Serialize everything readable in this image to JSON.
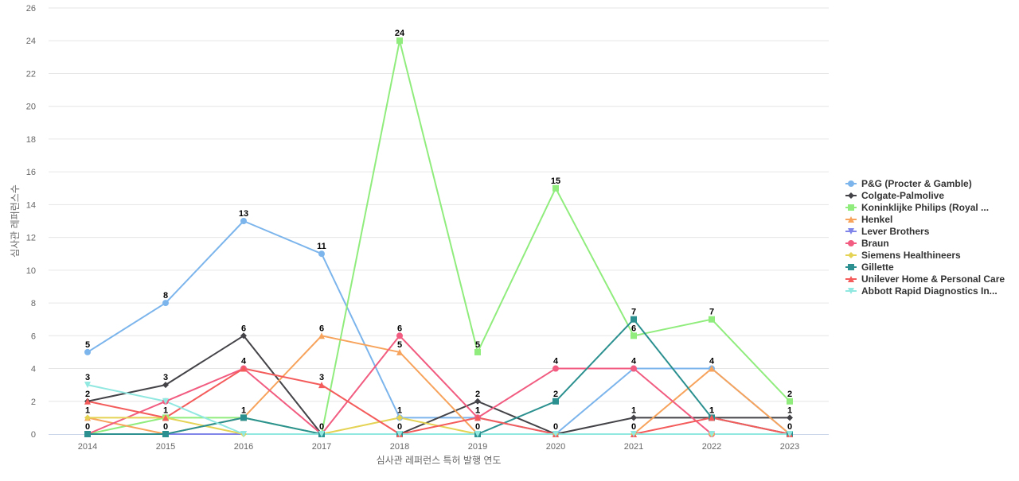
{
  "chart_data": {
    "type": "line",
    "title": "",
    "xlabel": "심사관 레퍼런스 특허 발행 연도",
    "ylabel": "심사관 레퍼런스수",
    "ylim": [
      0,
      26
    ],
    "yticks": [
      0,
      2,
      4,
      6,
      8,
      10,
      12,
      14,
      16,
      18,
      20,
      22,
      24,
      26
    ],
    "grid": true,
    "legend_position": "right",
    "categories": [
      "2014",
      "2015",
      "2016",
      "2017",
      "2018",
      "2019",
      "2020",
      "2021",
      "2022",
      "2023"
    ],
    "series": [
      {
        "name": "P&G (Procter & Gamble)",
        "color": "#7cb5ec",
        "marker": "circle",
        "values": [
          5,
          8,
          13,
          11,
          1,
          1,
          0,
          4,
          4,
          0
        ],
        "labels": [
          true,
          true,
          true,
          true,
          true,
          true,
          false,
          false,
          false,
          false
        ]
      },
      {
        "name": "Colgate-Palmolive",
        "color": "#434348",
        "marker": "diamond",
        "values": [
          2,
          3,
          6,
          0,
          0,
          2,
          0,
          1,
          1,
          1
        ],
        "labels": [
          true,
          true,
          true,
          false,
          true,
          true,
          true,
          true,
          true,
          true
        ]
      },
      {
        "name": "Koninklijke Philips (Royal ...",
        "color": "#90ed7d",
        "marker": "square",
        "values": [
          0,
          1,
          1,
          0,
          24,
          5,
          15,
          6,
          7,
          2
        ],
        "labels": [
          false,
          false,
          false,
          false,
          true,
          true,
          true,
          true,
          true,
          true
        ]
      },
      {
        "name": "Henkel",
        "color": "#f7a35c",
        "marker": "triangle",
        "values": [
          1,
          0,
          1,
          6,
          5,
          0,
          0,
          0,
          4,
          0
        ],
        "labels": [
          false,
          false,
          false,
          true,
          true,
          false,
          false,
          false,
          true,
          false
        ]
      },
      {
        "name": "Lever Brothers",
        "color": "#8085e9",
        "marker": "triangle-down",
        "values": [
          0,
          0,
          0,
          0,
          0,
          0,
          0,
          0,
          0,
          0
        ],
        "labels": [
          false,
          false,
          false,
          false,
          false,
          false,
          false,
          false,
          false,
          false
        ]
      },
      {
        "name": "Braun",
        "color": "#f15c80",
        "marker": "circle",
        "values": [
          0,
          2,
          4,
          0,
          6,
          1,
          4,
          4,
          0,
          0
        ],
        "labels": [
          false,
          false,
          false,
          false,
          true,
          false,
          true,
          true,
          false,
          false
        ]
      },
      {
        "name": "Siemens Healthineers",
        "color": "#e4d354",
        "marker": "diamond",
        "values": [
          1,
          1,
          0,
          0,
          1,
          0,
          0,
          0,
          0,
          0
        ],
        "labels": [
          true,
          false,
          false,
          false,
          false,
          false,
          false,
          false,
          false,
          false
        ]
      },
      {
        "name": "Gillette",
        "color": "#2b908f",
        "marker": "square",
        "values": [
          0,
          0,
          1,
          0,
          0,
          0,
          2,
          7,
          1,
          0
        ],
        "labels": [
          true,
          true,
          true,
          true,
          false,
          true,
          true,
          true,
          true,
          true
        ]
      },
      {
        "name": "Unilever Home & Personal Care",
        "color": "#f45b5b",
        "marker": "triangle",
        "values": [
          2,
          1,
          4,
          3,
          0,
          1,
          0,
          0,
          1,
          0
        ],
        "labels": [
          false,
          true,
          true,
          true,
          false,
          true,
          false,
          true,
          false,
          false
        ]
      },
      {
        "name": "Abbott Rapid Diagnostics In...",
        "color": "#91e8e1",
        "marker": "triangle-down",
        "values": [
          3,
          2,
          0,
          0,
          0,
          0,
          0,
          0,
          0,
          0
        ],
        "labels": [
          true,
          false,
          false,
          false,
          false,
          false,
          false,
          false,
          false,
          false
        ]
      }
    ]
  }
}
